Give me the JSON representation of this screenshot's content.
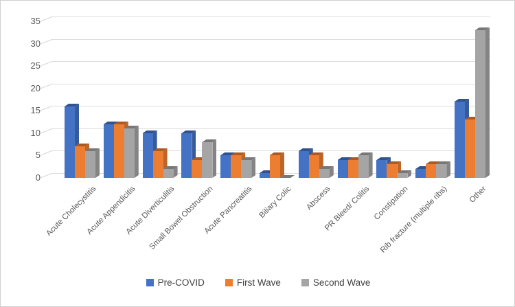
{
  "chart_data": {
    "type": "bar",
    "variant": "3d-clustered-column",
    "title": "",
    "xlabel": "",
    "ylabel": "",
    "ylim": [
      0,
      35
    ],
    "ytick_step": 5,
    "y_ticks": [
      "0",
      "5",
      "10",
      "15",
      "20",
      "25",
      "30",
      "35"
    ],
    "grid": true,
    "legend_position": "bottom",
    "background_color": "#ffffff",
    "gridline_color": "#dedede",
    "axis_text_color": "#595959",
    "categories": [
      "Acute Cholecystitis",
      "Acute Appendicitis",
      "Acute Diverticulitis",
      "Small Bowel Obstruction",
      "Acute Pancreatitis",
      "Biliary Colic",
      "Abscess",
      "PR Bleed/ Colitis",
      "Constipation",
      "Rib fracture (multiple ribs)",
      "Other"
    ],
    "series": [
      {
        "name": "Pre-COVID",
        "color": "#4472C4",
        "values": [
          16,
          12,
          10,
          10,
          5,
          1,
          6,
          4,
          4,
          2,
          17
        ]
      },
      {
        "name": "First Wave",
        "color": "#ED7D31",
        "values": [
          7,
          12,
          6,
          4,
          5,
          5,
          5,
          4,
          3,
          3,
          13
        ]
      },
      {
        "name": "Second Wave",
        "color": "#A5A5A5",
        "values": [
          6,
          11,
          2,
          8,
          4,
          0,
          2,
          5,
          1,
          3,
          33
        ]
      }
    ]
  }
}
